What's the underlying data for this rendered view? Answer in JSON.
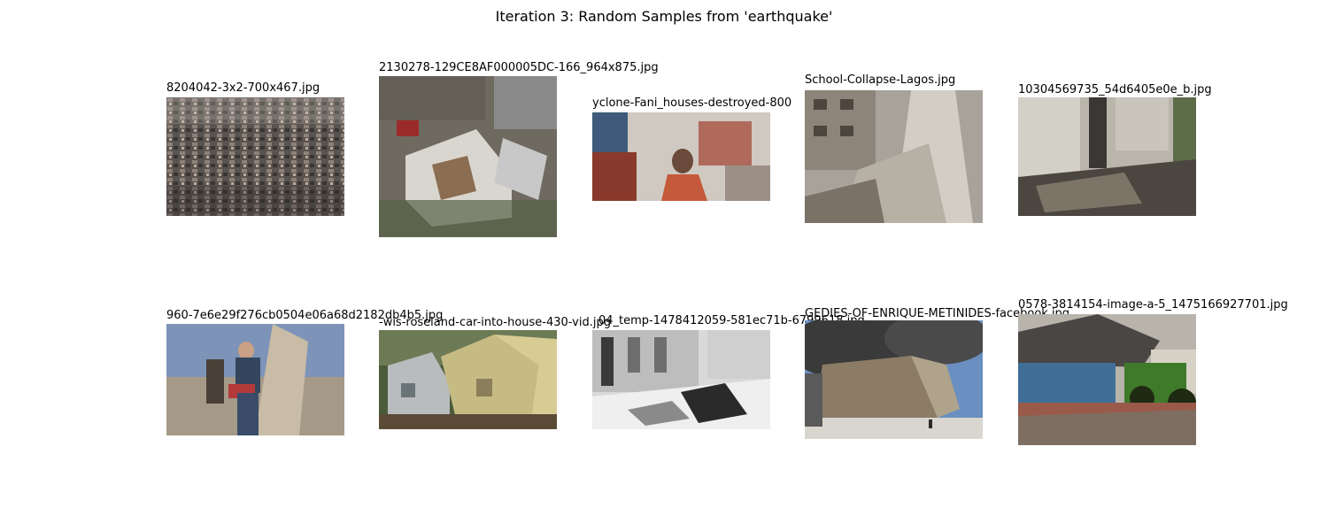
{
  "figure": {
    "title": "Iteration 3: Random Samples from 'earthquake'"
  },
  "samples": [
    {
      "filename": "8204042-3x2-700x467.jpg",
      "image": "aerial-view-destroyed-city-photo"
    },
    {
      "filename": "2130278-129CE8AF000005DC-166_964x875.jpg",
      "image": "collapsed-house-debris-photo"
    },
    {
      "filename": "yclone-Fani_houses-destroyed-800",
      "image": "woman-in-damaged-room-photo"
    },
    {
      "filename": "School-Collapse-Lagos.jpg",
      "image": "collapsed-building-photo"
    },
    {
      "filename": "10304569735_54d6405e0e_b.jpg",
      "image": "damaged-interior-rubble-photo"
    },
    {
      "filename": "960-7e6e29f276cb0504e06a68d2182db4b5.jpg",
      "image": "man-carrying-debris-photo"
    },
    {
      "filename": "-wis-roseland-car-into-house-430-vid.jpg",
      "image": "tilted-house-photo"
    },
    {
      "filename": "04_temp-1478412059-581ec71b-6799618.jpg",
      "image": "black-white-street-rubble-photo"
    },
    {
      "filename": "GEDIES-OF-ENRIQUE-METINIDES-facebook.jpg",
      "image": "smoking-building-collapse-photo"
    },
    {
      "filename": "0578-3814154-image-a-5_1475166927701.jpg",
      "image": "tractor-by-crushed-house-photo"
    }
  ]
}
